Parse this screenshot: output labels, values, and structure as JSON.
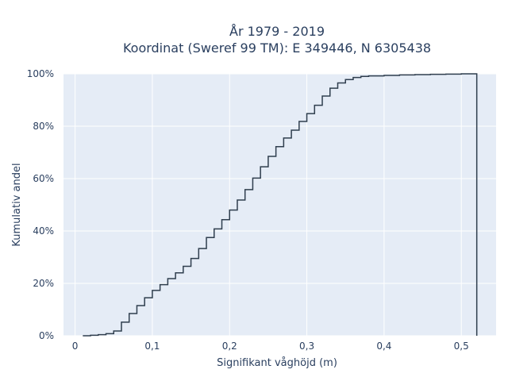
{
  "chart_data": {
    "type": "line",
    "title_line1": "År 1979 - 2019",
    "title_line2": "Koordinat (Sweref 99 TM): E 349446, N 6305438",
    "xlabel": "Signifikant våghöjd (m)",
    "ylabel": "Kumulativ andel",
    "xlim": [
      -0.015,
      0.545
    ],
    "ylim": [
      0,
      1.0
    ],
    "x_ticks": [
      0,
      0.1,
      0.2,
      0.3,
      0.4,
      0.5
    ],
    "x_tick_labels": [
      "0",
      "0,1",
      "0,2",
      "0,3",
      "0,4",
      "0,5"
    ],
    "y_ticks": [
      0,
      0.2,
      0.4,
      0.6,
      0.8,
      1.0
    ],
    "y_tick_labels": [
      "0%",
      "20%",
      "40%",
      "60%",
      "80%",
      "100%"
    ],
    "grid": true,
    "line_color": "#2f3e4e",
    "plot_background": "#e5ecf6",
    "series": [
      {
        "step": "post",
        "x": [
          0.01,
          0.02,
          0.03,
          0.04,
          0.05,
          0.06,
          0.07,
          0.08,
          0.09,
          0.1,
          0.11,
          0.12,
          0.13,
          0.14,
          0.15,
          0.16,
          0.17,
          0.18,
          0.19,
          0.2,
          0.21,
          0.22,
          0.23,
          0.24,
          0.25,
          0.26,
          0.27,
          0.28,
          0.29,
          0.3,
          0.31,
          0.32,
          0.33,
          0.34,
          0.35,
          0.36,
          0.37,
          0.38,
          0.4,
          0.42,
          0.44,
          0.46,
          0.48,
          0.5,
          0.52
        ],
        "y": [
          0.0,
          0.002,
          0.004,
          0.008,
          0.018,
          0.052,
          0.085,
          0.115,
          0.145,
          0.173,
          0.195,
          0.218,
          0.24,
          0.265,
          0.295,
          0.333,
          0.375,
          0.408,
          0.443,
          0.48,
          0.518,
          0.558,
          0.602,
          0.645,
          0.685,
          0.722,
          0.755,
          0.785,
          0.818,
          0.848,
          0.88,
          0.915,
          0.945,
          0.965,
          0.978,
          0.986,
          0.99,
          0.992,
          0.994,
          0.996,
          0.997,
          0.998,
          0.999,
          1.0,
          1.0
        ]
      }
    ]
  }
}
